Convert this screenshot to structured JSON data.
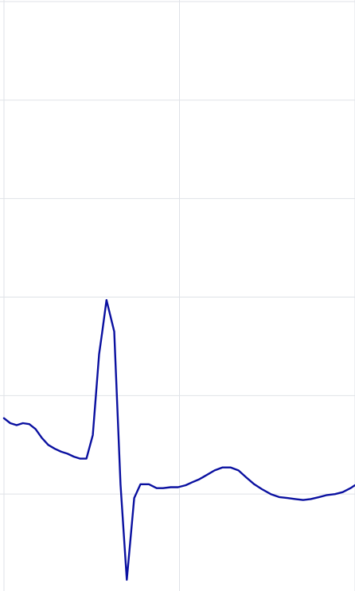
{
  "chart_data": {
    "type": "line",
    "title": "",
    "xlabel": "",
    "ylabel": "",
    "grid": true,
    "legend": "none",
    "xlim": [
      0,
      1
    ],
    "ylim": [
      0,
      6
    ],
    "x_grid": [
      0.0,
      0.5,
      1.0
    ],
    "y_grid": [
      0,
      1,
      2,
      3,
      4,
      5,
      6
    ],
    "series": [
      {
        "color": "#0a10a0",
        "x": [
          0.0,
          0.018,
          0.036,
          0.054,
          0.072,
          0.09,
          0.108,
          0.126,
          0.145,
          0.163,
          0.181,
          0.199,
          0.217,
          0.235,
          0.253,
          0.271,
          0.28,
          0.292,
          0.314,
          0.332,
          0.35,
          0.371,
          0.389,
          0.413,
          0.435,
          0.453,
          0.475,
          0.496,
          0.518,
          0.536,
          0.556,
          0.576,
          0.6,
          0.622,
          0.646,
          0.668,
          0.69,
          0.713,
          0.735,
          0.76,
          0.784,
          0.807,
          0.83,
          0.852,
          0.874,
          0.898,
          0.92,
          0.943,
          0.965,
          0.987,
          1.0
        ],
        "y": [
          1.77,
          1.72,
          1.7,
          1.72,
          1.71,
          1.66,
          1.57,
          1.5,
          1.46,
          1.43,
          1.41,
          1.38,
          1.36,
          1.36,
          1.6,
          2.42,
          2.65,
          2.97,
          2.65,
          1.1,
          0.13,
          0.96,
          1.1,
          1.1,
          1.06,
          1.06,
          1.07,
          1.07,
          1.09,
          1.12,
          1.15,
          1.19,
          1.24,
          1.27,
          1.27,
          1.24,
          1.17,
          1.1,
          1.05,
          1.0,
          0.97,
          0.96,
          0.95,
          0.94,
          0.95,
          0.97,
          0.99,
          1.0,
          1.02,
          1.06,
          1.09
        ]
      }
    ]
  }
}
